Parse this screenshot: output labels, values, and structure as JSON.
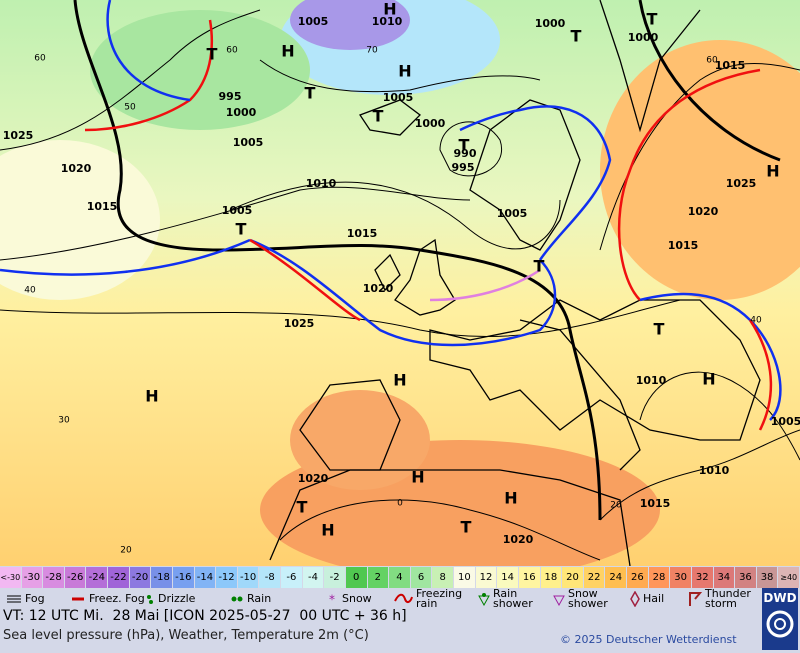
{
  "map": {
    "isobar_labels": [
      1005,
      1010,
      1000,
      1000,
      995,
      1000,
      1005,
      1000,
      1025,
      1005,
      990,
      995,
      1020,
      1010,
      1015,
      1005,
      1005,
      1015,
      1015,
      1020,
      1025,
      1015,
      1020,
      1025,
      1010,
      1010,
      1015,
      1020,
      1020,
      1005
    ],
    "centers": [
      "H",
      "H",
      "H",
      "T",
      "T",
      "T",
      "T",
      "T",
      "T",
      "H",
      "T",
      "T",
      "T",
      "H",
      "H",
      "H",
      "H",
      "H",
      "H",
      "T",
      "T"
    ],
    "grid_labels": [
      "60",
      "50",
      "40",
      "30",
      "20",
      "0",
      "20",
      "40",
      "60",
      "70",
      "60"
    ]
  },
  "scale": {
    "labels": [
      "<-30",
      -30,
      -28,
      -26,
      -24,
      -22,
      -20,
      -18,
      -16,
      -14,
      -12,
      -10,
      -8,
      -6,
      -4,
      -2,
      0,
      2,
      4,
      6,
      8,
      10,
      12,
      14,
      16,
      18,
      20,
      22,
      24,
      26,
      28,
      30,
      32,
      34,
      36,
      38,
      "≥40 °C"
    ],
    "colors": [
      "#f2b8f2",
      "#e6a0e6",
      "#d88ce0",
      "#c87ad8",
      "#b46ed8",
      "#a064d8",
      "#8c78e0",
      "#7890e8",
      "#78a0f0",
      "#82b4f5",
      "#8cc8fa",
      "#a0d8fa",
      "#b4e6fa",
      "#c8f0fa",
      "#d2f5f0",
      "#c8f0dc",
      "#50c850",
      "#64d264",
      "#82dc82",
      "#a0e6a0",
      "#c8f0b4",
      "#fafae6",
      "#fafad2",
      "#fafabe",
      "#fff5a0",
      "#fff08c",
      "#ffe678",
      "#ffd264",
      "#ffbe50",
      "#ffaa50",
      "#ff965a",
      "#f08264",
      "#e6786e",
      "#dc7878",
      "#d28282",
      "#c89696",
      "#dcb4b4"
    ]
  },
  "weather_legend": [
    "Fog",
    "Freez. Fog",
    "Drizzle",
    "Rain",
    "Snow",
    "Freezing rain",
    "Rain shower",
    "Snow shower",
    "Hail",
    "Thunder storm"
  ],
  "footer": {
    "valid": "VT: 12 UTC Mi.  28 Mai [ICON 2025-05-27  00 UTC + 36 h]",
    "subtitle": "Sea level pressure (hPa), Weather, Temperature 2m (°C)",
    "copyright": "© 2025 Deutscher Wetterdienst",
    "logo": "DWD"
  }
}
